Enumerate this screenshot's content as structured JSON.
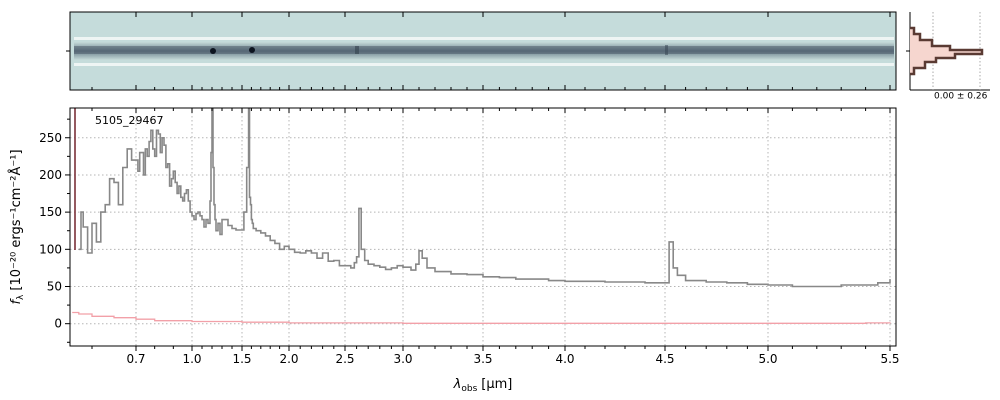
{
  "chart_data": {
    "type": "line",
    "object_label": "5105_29467",
    "xlabel_main": "λ",
    "xlabel_sub": "obs",
    "xlabel_unit": "[μm]",
    "ylabel_main": "f",
    "ylabel_sub": "λ",
    "ylabel_unit": "[10⁻²⁰ ergs⁻¹cm⁻²Å⁻¹]",
    "profile_label": "0.00 ± 0.26",
    "x_scale": "nonlinear (spectral pixel scale)",
    "xlim": [
      0.55,
      5.52
    ],
    "ylim": [
      -30,
      290
    ],
    "grid": true,
    "x_ticks": [
      {
        "value": 0.7,
        "label": "0.7"
      },
      {
        "value": 1.0,
        "label": "1.0"
      },
      {
        "value": 1.5,
        "label": "1.5"
      },
      {
        "value": 2.0,
        "label": "2.0"
      },
      {
        "value": 2.5,
        "label": "2.5"
      },
      {
        "value": 3.0,
        "label": "3.0"
      },
      {
        "value": 3.5,
        "label": "3.5"
      },
      {
        "value": 4.0,
        "label": "4.0"
      },
      {
        "value": 4.5,
        "label": "4.5"
      },
      {
        "value": 5.0,
        "label": "5.0"
      },
      {
        "value": 5.5,
        "label": "5.5"
      }
    ],
    "y_ticks": [
      {
        "value": 0,
        "label": "0"
      },
      {
        "value": 50,
        "label": "50"
      },
      {
        "value": 100,
        "label": "100"
      },
      {
        "value": 150,
        "label": "150"
      },
      {
        "value": 200,
        "label": "200"
      },
      {
        "value": 250,
        "label": "250"
      }
    ],
    "series": [
      {
        "color": "#888888",
        "x": [
          0.57,
          0.575,
          0.58,
          0.59,
          0.6,
          0.61,
          0.62,
          0.63,
          0.64,
          0.65,
          0.66,
          0.67,
          0.68,
          0.69,
          0.7,
          0.71,
          0.72,
          0.73,
          0.74,
          0.75,
          0.76,
          0.77,
          0.78,
          0.79,
          0.8,
          0.81,
          0.82,
          0.83,
          0.84,
          0.85,
          0.86,
          0.87,
          0.88,
          0.89,
          0.9,
          0.91,
          0.92,
          0.93,
          0.94,
          0.95,
          0.96,
          0.97,
          0.98,
          0.99,
          1.0,
          1.02,
          1.04,
          1.06,
          1.08,
          1.1,
          1.12,
          1.14,
          1.16,
          1.18,
          1.19,
          1.2,
          1.21,
          1.22,
          1.23,
          1.24,
          1.26,
          1.28,
          1.3,
          1.33,
          1.36,
          1.4,
          1.44,
          1.48,
          1.52,
          1.55,
          1.57,
          1.58,
          1.59,
          1.6,
          1.61,
          1.62,
          1.65,
          1.7,
          1.75,
          1.8,
          1.85,
          1.9,
          1.95,
          2.0,
          2.05,
          2.1,
          2.15,
          2.2,
          2.25,
          2.3,
          2.35,
          2.4,
          2.45,
          2.5,
          2.55,
          2.58,
          2.6,
          2.62,
          2.64,
          2.67,
          2.7,
          2.75,
          2.8,
          2.85,
          2.9,
          2.95,
          3.0,
          3.05,
          3.08,
          3.1,
          3.12,
          3.15,
          3.2,
          3.3,
          3.4,
          3.5,
          3.6,
          3.7,
          3.8,
          3.9,
          4.0,
          4.1,
          4.2,
          4.3,
          4.4,
          4.48,
          4.52,
          4.54,
          4.56,
          4.6,
          4.7,
          4.8,
          4.9,
          5.0,
          5.1,
          5.2,
          5.3,
          5.4,
          5.45,
          5.5
        ],
        "y": [
          100,
          150,
          130,
          95,
          135,
          110,
          150,
          160,
          195,
          190,
          160,
          210,
          235,
          220,
          220,
          205,
          230,
          230,
          200,
          235,
          225,
          245,
          260,
          235,
          225,
          260,
          255,
          230,
          250,
          240,
          210,
          215,
          185,
          195,
          205,
          190,
          175,
          185,
          170,
          165,
          175,
          180,
          165,
          150,
          145,
          140,
          148,
          150,
          145,
          140,
          130,
          140,
          135,
          165,
          230,
          290,
          210,
          160,
          140,
          125,
          135,
          120,
          140,
          140,
          132,
          128,
          126,
          126,
          150,
          210,
          290,
          170,
          160,
          140,
          135,
          128,
          125,
          122,
          118,
          112,
          108,
          100,
          104,
          100,
          96,
          95,
          98,
          95,
          88,
          95,
          84,
          85,
          78,
          78,
          75,
          82,
          90,
          155,
          100,
          85,
          80,
          78,
          76,
          73,
          75,
          78,
          76,
          72,
          80,
          98,
          88,
          75,
          70,
          67,
          66,
          63,
          62,
          60,
          60,
          58,
          57,
          57,
          56,
          56,
          55,
          55,
          110,
          75,
          65,
          58,
          56,
          55,
          53,
          52,
          50,
          50,
          52,
          52,
          55,
          60
        ]
      },
      {
        "color": "#f2a0a8",
        "x": [
          0.555,
          0.57,
          0.6,
          0.65,
          0.7,
          0.8,
          1.0,
          1.5,
          2.0,
          3.0,
          4.0,
          5.0,
          5.4,
          5.5
        ],
        "y": [
          15,
          13,
          10,
          8,
          6,
          4,
          3,
          2,
          1,
          0.5,
          0.5,
          0.5,
          1,
          2
        ]
      }
    ]
  }
}
